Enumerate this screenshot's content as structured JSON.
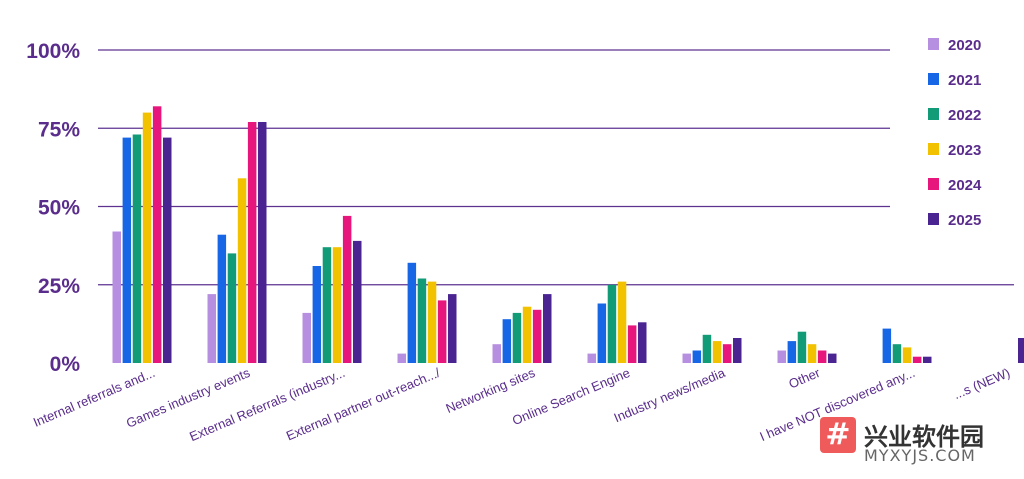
{
  "chart_data": {
    "type": "bar",
    "categories": [
      "Internal referrals and...",
      "Games industry events",
      "External Referrals (industry...",
      "External partner out-reach.../",
      "Networking sites",
      "Online Search Engine",
      "Industry news/media",
      "Other",
      "I have NOT discovered any...",
      "...s (NEW)"
    ],
    "series": [
      {
        "name": "2020",
        "color": "#b78fe0",
        "values": [
          42,
          22,
          16,
          3,
          6,
          3,
          3,
          4,
          null,
          null
        ]
      },
      {
        "name": "2021",
        "color": "#1766e6",
        "values": [
          72,
          41,
          31,
          32,
          14,
          19,
          4,
          7,
          11,
          null
        ]
      },
      {
        "name": "2022",
        "color": "#119b77",
        "values": [
          73,
          35,
          37,
          27,
          16,
          25,
          9,
          10,
          6,
          null
        ]
      },
      {
        "name": "2023",
        "color": "#f2c100",
        "values": [
          80,
          59,
          37,
          26,
          18,
          26,
          7,
          6,
          5,
          null
        ]
      },
      {
        "name": "2024",
        "color": "#e6167d",
        "values": [
          82,
          77,
          47,
          20,
          17,
          12,
          6,
          4,
          2,
          null
        ]
      },
      {
        "name": "2025",
        "color": "#4a2591",
        "values": [
          72,
          77,
          39,
          22,
          22,
          13,
          8,
          3,
          2,
          8
        ]
      }
    ],
    "yticks": [
      "0%",
      "25%",
      "50%",
      "75%",
      "100%"
    ],
    "ylim": [
      0,
      100
    ],
    "title": "",
    "xlabel": "",
    "ylabel": "",
    "grid": true,
    "legend_position": "right",
    "axis_label_color": "#5a2d8c",
    "gridline_color": "#5e3390"
  },
  "watermark": {
    "icon_glyph": "#",
    "title": "兴业软件园",
    "subtitle": "MYXYJS.COM"
  }
}
